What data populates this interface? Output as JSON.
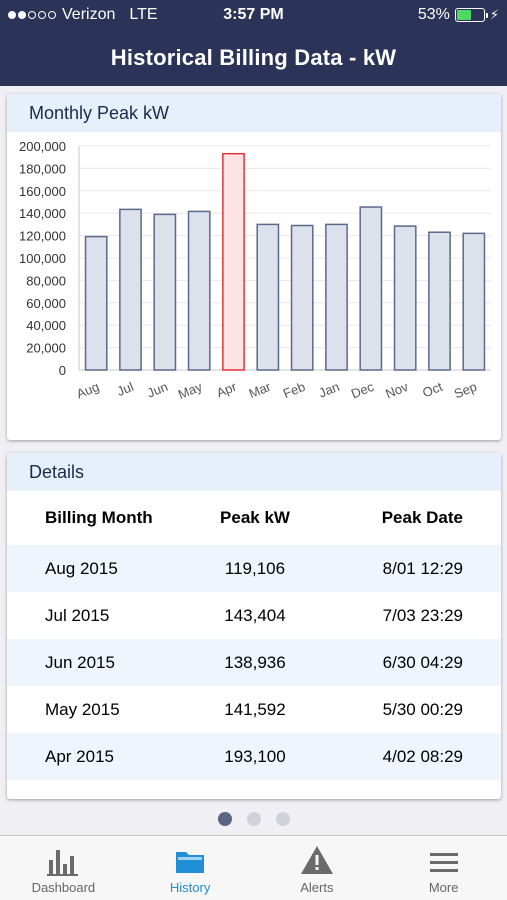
{
  "status_bar": {
    "carrier": "Verizon",
    "network": "LTE",
    "time": "3:57 PM",
    "battery": "53%",
    "battery_level": 0.53
  },
  "nav": {
    "title": "Historical Billing Data - kW"
  },
  "chart_card": {
    "title": "Monthly Peak kW"
  },
  "chart_data": {
    "type": "bar",
    "categories": [
      "Aug",
      "Jul",
      "Jun",
      "May",
      "Apr",
      "Mar",
      "Feb",
      "Jan",
      "Dec",
      "Nov",
      "Oct",
      "Sep"
    ],
    "values": [
      119106,
      143404,
      138936,
      141592,
      193100,
      130000,
      129000,
      130000,
      145500,
      128500,
      123000,
      122000
    ],
    "highlight_index": 4,
    "ylim": [
      0,
      200000
    ],
    "yticks": [
      "200,000",
      "180,000",
      "160,000",
      "140,000",
      "120,000",
      "100,000",
      "80,000",
      "60,000",
      "40,000",
      "20,000",
      "0"
    ],
    "grid": true,
    "colors": {
      "bar_fill": "#dde1ec",
      "bar_stroke": "#5a6a8c",
      "highlight_fill": "#fde3e3",
      "highlight_stroke": "#e0353b"
    }
  },
  "details": {
    "title": "Details",
    "headers": [
      "Billing Month",
      "Peak kW",
      "Peak Date"
    ],
    "rows": [
      [
        "Aug 2015",
        "119,106",
        "8/01 12:29"
      ],
      [
        "Jul 2015",
        "143,404",
        "7/03 23:29"
      ],
      [
        "Jun 2015",
        "138,936",
        "6/30 04:29"
      ],
      [
        "May 2015",
        "141,592",
        "5/30 00:29"
      ],
      [
        "Apr 2015",
        "193,100",
        "4/02 08:29"
      ]
    ]
  },
  "pager": {
    "count": 3,
    "active": 0
  },
  "tabs": [
    {
      "label": "Dashboard",
      "icon": "bar-chart-icon",
      "active": false
    },
    {
      "label": "History",
      "icon": "folder-icon",
      "active": true
    },
    {
      "label": "Alerts",
      "icon": "warning-icon",
      "active": false
    },
    {
      "label": "More",
      "icon": "menu-icon",
      "active": false
    }
  ],
  "colors": {
    "nav_bg": "#2b3358",
    "accent": "#1e8ed6",
    "card_head_bg": "#e6f0fa"
  }
}
